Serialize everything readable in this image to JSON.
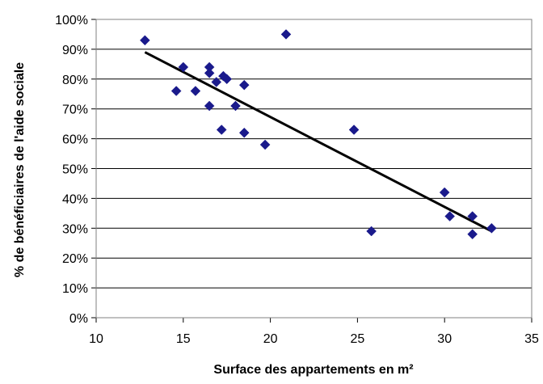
{
  "chart_data": {
    "type": "scatter",
    "xlabel": "Surface des appartements en m²",
    "ylabel": "% de bénéficiaires de l'aide sociale",
    "xlim": [
      10,
      35
    ],
    "ylim": [
      0,
      1
    ],
    "x_ticks": [
      "10",
      "15",
      "20",
      "25",
      "30",
      "35"
    ],
    "y_ticks": [
      "0%",
      "10%",
      "20%",
      "30%",
      "40%",
      "50%",
      "60%",
      "70%",
      "80%",
      "90%",
      "100%"
    ],
    "grid": "horizontal",
    "legend": "none",
    "marker": "diamond",
    "marker_color": "#1a1a8c",
    "trendline_color": "#000000",
    "points": [
      {
        "x": 12.8,
        "y": 0.93
      },
      {
        "x": 14.6,
        "y": 0.76
      },
      {
        "x": 15.0,
        "y": 0.84
      },
      {
        "x": 15.7,
        "y": 0.76
      },
      {
        "x": 16.5,
        "y": 0.84
      },
      {
        "x": 16.5,
        "y": 0.82
      },
      {
        "x": 16.5,
        "y": 0.71
      },
      {
        "x": 16.9,
        "y": 0.79
      },
      {
        "x": 17.2,
        "y": 0.63
      },
      {
        "x": 17.3,
        "y": 0.81
      },
      {
        "x": 17.5,
        "y": 0.8
      },
      {
        "x": 18.0,
        "y": 0.71
      },
      {
        "x": 18.5,
        "y": 0.78
      },
      {
        "x": 18.5,
        "y": 0.62
      },
      {
        "x": 19.7,
        "y": 0.58
      },
      {
        "x": 20.9,
        "y": 0.95
      },
      {
        "x": 24.8,
        "y": 0.63
      },
      {
        "x": 25.8,
        "y": 0.29
      },
      {
        "x": 30.0,
        "y": 0.42
      },
      {
        "x": 30.3,
        "y": 0.34
      },
      {
        "x": 31.6,
        "y": 0.34
      },
      {
        "x": 31.6,
        "y": 0.28
      },
      {
        "x": 32.7,
        "y": 0.3
      }
    ],
    "trendline": {
      "x": [
        12.8,
        32.7
      ],
      "y": [
        0.89,
        0.29
      ]
    }
  }
}
